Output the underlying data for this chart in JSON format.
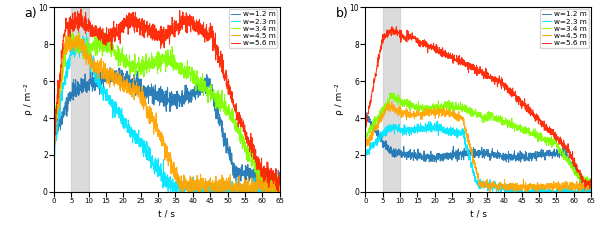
{
  "colors": [
    "#1f77b4",
    "#00e5ff",
    "#7fff00",
    "#ffa500",
    "#ff2200"
  ],
  "labels": [
    "w=1.2 m",
    "w=2.3 m",
    "w=3.4 m",
    "w=4.5 m",
    "w=5.6 m"
  ],
  "ylabel": "ρ / m⁻²",
  "xlabel": "t / s",
  "ylim": [
    0,
    10
  ],
  "xlim": [
    0,
    65
  ],
  "xticks": [
    0,
    5,
    10,
    15,
    20,
    25,
    30,
    35,
    40,
    45,
    50,
    55,
    60,
    65
  ],
  "yticks": [
    0,
    2,
    4,
    6,
    8,
    10
  ],
  "shade_x0": 5,
  "shade_x1": 10,
  "panel_a_label": "a)",
  "panel_b_label": "b)",
  "shade_color": "#cccccc",
  "shade_alpha": 0.7,
  "t_start": 0,
  "t_end": 65,
  "t_n": 1300,
  "noise_a": 0.25,
  "noise_b": 0.12
}
